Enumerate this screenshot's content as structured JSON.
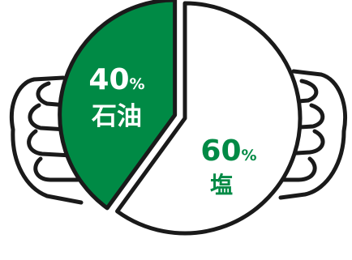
{
  "colors": {
    "green": "#008a45",
    "white": "#ffffff",
    "outline": "#1a1a1a"
  },
  "chart_data": {
    "type": "pie",
    "title": "",
    "slices": [
      {
        "label": "石油",
        "value": 40,
        "value_text": "40",
        "unit": "%",
        "color": "#008a45",
        "exploded": true
      },
      {
        "label": "塩",
        "value": 60,
        "value_text": "60",
        "unit": "%",
        "color": "#ffffff",
        "exploded": false
      }
    ],
    "decoration": {
      "left": "hand-holding-chart",
      "right": "hand-holding-chart"
    }
  }
}
